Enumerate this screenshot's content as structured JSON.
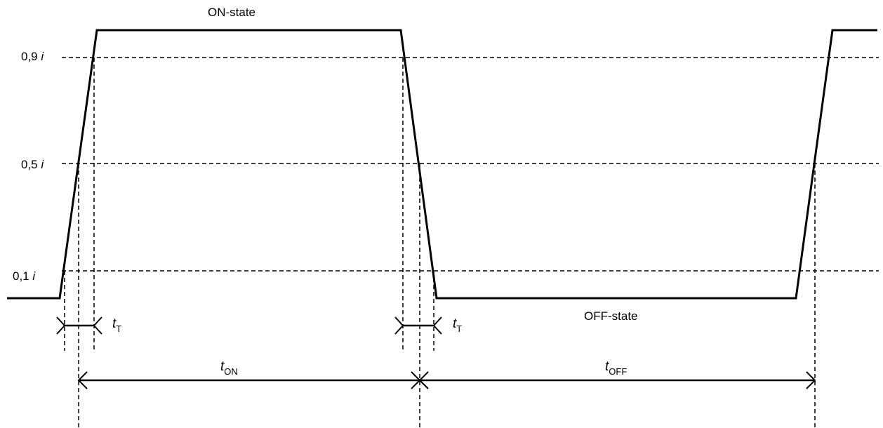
{
  "levels": {
    "high": {
      "value": "0,9",
      "symbol": "i"
    },
    "mid": {
      "value": "0,5",
      "symbol": "i"
    },
    "low": {
      "value": "0,1",
      "symbol": "i"
    }
  },
  "states": {
    "on": "ON-state",
    "off": "OFF-state"
  },
  "transition_left": {
    "symbol": "t",
    "subscript": "T"
  },
  "transition_right": {
    "symbol": "t",
    "subscript": "T"
  },
  "period_on": {
    "symbol": "t",
    "subscript": "ON"
  },
  "period_off": {
    "symbol": "t",
    "subscript": "OFF"
  }
}
